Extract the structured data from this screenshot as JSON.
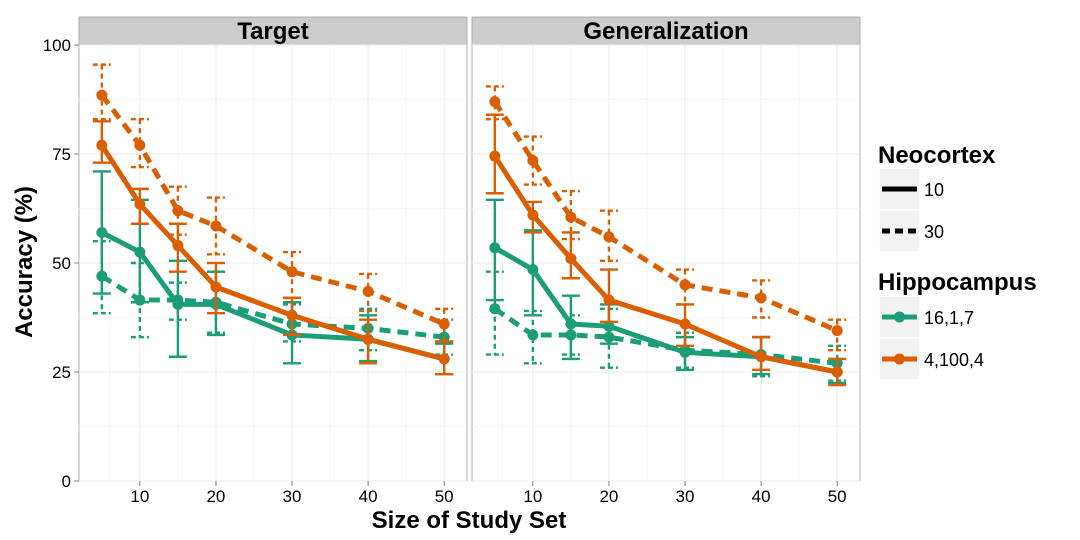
{
  "chart_data": {
    "type": "line",
    "xlabel": "Size of Study Set",
    "ylabel": "Accuracy (%)",
    "xticks": [
      10,
      20,
      30,
      40,
      50
    ],
    "yticks": [
      0,
      25,
      50,
      75,
      100
    ],
    "xlim": [
      2,
      53
    ],
    "ylim": [
      0,
      100
    ],
    "grid": true,
    "legend_position": "right",
    "colors": {
      "16,1,7": "#1b9e77",
      "4,100,4": "#d95f02"
    },
    "legend": {
      "neocortex_title": "Neocortex",
      "neocortex_items": [
        {
          "label": "10",
          "linetype": "solid"
        },
        {
          "label": "30",
          "linetype": "dashed"
        }
      ],
      "hippocampus_title": "Hippocampus",
      "hippocampus_items": [
        {
          "label": "16,1,7",
          "color": "#1b9e77"
        },
        {
          "label": "4,100,4",
          "color": "#d95f02"
        }
      ]
    },
    "x": [
      5,
      10,
      15,
      20,
      30,
      40,
      50
    ],
    "panels": [
      {
        "title": "Target",
        "series": [
          {
            "hippocampus": "16,1,7",
            "neocortex": "10",
            "y": [
              57,
              52.5,
              40.5,
              40.5,
              33.5,
              32.5,
              28
            ],
            "lo": [
              43,
              41,
              28.5,
              33.5,
              27,
              27.5,
              24.5
            ],
            "hi": [
              71,
              64.5,
              50.5,
              48,
              41,
              38,
              31.5
            ]
          },
          {
            "hippocampus": "16,1,7",
            "neocortex": "30",
            "y": [
              47,
              41.5,
              41.5,
              41,
              36,
              35,
              33
            ],
            "lo": [
              38.5,
              33,
              37,
              34,
              32,
              30,
              29
            ],
            "hi": [
              55,
              50,
              45.5,
              48,
              40.5,
              39.5,
              37
            ]
          },
          {
            "hippocampus": "4,100,4",
            "neocortex": "10",
            "y": [
              77,
              63.5,
              54,
              44.5,
              38,
              32.5,
              28
            ],
            "lo": [
              73,
              59,
              48,
              38.5,
              33.5,
              27,
              24.5
            ],
            "hi": [
              82.5,
              67,
              59,
              50,
              42,
              37,
              32
            ]
          },
          {
            "hippocampus": "4,100,4",
            "neocortex": "30",
            "y": [
              88.5,
              77,
              62,
              58.5,
              48,
              43.5,
              36
            ],
            "lo": [
              83,
              72,
              56.5,
              52,
              42,
              39,
              32
            ],
            "hi": [
              95.5,
              83,
              67.5,
              65,
              52.5,
              47.5,
              39.5
            ]
          }
        ]
      },
      {
        "title": "Generalization",
        "series": [
          {
            "hippocampus": "16,1,7",
            "neocortex": "10",
            "y": [
              53.5,
              48.5,
              36,
              35.5,
              29.5,
              28.5,
              25
            ],
            "lo": [
              41.5,
              38,
              28,
              31.5,
              25.5,
              24.5,
              22.5
            ],
            "hi": [
              64.5,
              57.5,
              42.5,
              40.5,
              33,
              33,
              28
            ]
          },
          {
            "hippocampus": "16,1,7",
            "neocortex": "30",
            "y": [
              39.5,
              33.5,
              33.5,
              33,
              30,
              29,
              27
            ],
            "lo": [
              29,
              27,
              29,
              26,
              26,
              24,
              23
            ],
            "hi": [
              48,
              39,
              38,
              39.5,
              34,
              33,
              31
            ]
          },
          {
            "hippocampus": "4,100,4",
            "neocortex": "10",
            "y": [
              74.5,
              61,
              51,
              41.5,
              36,
              28.5,
              25
            ],
            "lo": [
              66,
              57,
              46.5,
              36.5,
              31,
              25.5,
              22
            ],
            "hi": [
              84,
              64,
              57,
              48.5,
              40.5,
              33,
              28
            ]
          },
          {
            "hippocampus": "4,100,4",
            "neocortex": "30",
            "y": [
              87,
              73.5,
              60.5,
              56,
              45,
              42,
              34.5
            ],
            "lo": [
              83,
              68,
              55.5,
              50.5,
              40.5,
              37.5,
              30
            ],
            "hi": [
              90.5,
              79,
              66.5,
              62,
              48.5,
              46,
              37
            ]
          }
        ]
      }
    ]
  }
}
